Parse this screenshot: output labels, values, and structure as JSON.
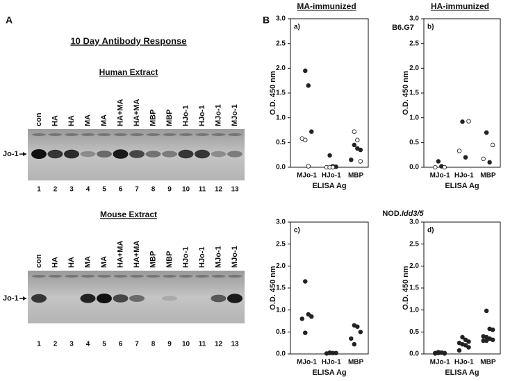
{
  "panel_a": {
    "letter": "A",
    "title": "10 Day Antibody Response",
    "blots": [
      {
        "title": "Human Extract",
        "lanes": [
          "con",
          "HA",
          "HA",
          "MA",
          "MA",
          "HA+MA",
          "HA+MA",
          "MBP",
          "MBP",
          "HJo-1",
          "HJo-1",
          "MJo-1",
          "MJo-1"
        ],
        "numbers": [
          1,
          2,
          3,
          4,
          5,
          6,
          7,
          8,
          9,
          10,
          11,
          12,
          13
        ],
        "marker": "Jo-1"
      },
      {
        "title": "Mouse Extract",
        "lanes": [
          "con",
          "HA",
          "HA",
          "MA",
          "MA",
          "HA+MA",
          "HA+MA",
          "MBP",
          "MBP",
          "HJo-1",
          "HJo-1",
          "MJo-1",
          "MJo-1"
        ],
        "numbers": [
          1,
          2,
          3,
          4,
          5,
          6,
          7,
          8,
          9,
          10,
          11,
          12,
          13
        ],
        "marker": "Jo-1"
      }
    ]
  },
  "panel_b": {
    "letter": "B",
    "columns": [
      "MA-immunized",
      "HA-immunized"
    ],
    "rows": [
      {
        "prefix": "B6.G7",
        "italic": ""
      },
      {
        "prefix": "NOD.",
        "italic": "Idd3/5"
      }
    ]
  },
  "chart_data": [
    {
      "type": "scatter",
      "title": "a)",
      "ylabel": "O.D. 450 nm",
      "xlabel": "ELISA Ag",
      "categories": [
        "MJo-1",
        "HJo-1",
        "MBP"
      ],
      "ylim": [
        0,
        3
      ],
      "yticks": [
        {
          "value": 0,
          "label": "0.0"
        },
        {
          "value": 0.5,
          "label": "0.5"
        },
        {
          "value": 1,
          "label": "1.0"
        },
        {
          "value": 1.5,
          "label": "1.5"
        },
        {
          "value": 2,
          "label": "2.0"
        },
        {
          "value": 2.5,
          "label": "2.5"
        },
        {
          "value": 3,
          "label": "3.0"
        }
      ],
      "series": [
        {
          "marker": "filled",
          "color": "#222",
          "x": [
            "MJo-1",
            "MJo-1",
            "MJo-1",
            "HJo-1",
            "HJo-1",
            "HJo-1",
            "MBP",
            "MBP",
            "MBP",
            "MBP"
          ],
          "values": [
            1.95,
            1.65,
            0.72,
            0.24,
            0.02,
            0.01,
            0.45,
            0.38,
            0.35,
            0.15
          ]
        },
        {
          "marker": "open",
          "color": "#222",
          "x": [
            "MJo-1",
            "MJo-1",
            "MJo-1",
            "HJo-1",
            "HJo-1",
            "HJo-1",
            "MBP",
            "MBP",
            "MBP"
          ],
          "values": [
            0.58,
            0.55,
            0.02,
            0,
            0,
            0,
            0.72,
            0.55,
            0.12
          ]
        }
      ]
    },
    {
      "type": "scatter",
      "title": "b)",
      "ylabel": "O.D. 450 nm",
      "xlabel": "ELISA Ag",
      "categories": [
        "MJo-1",
        "HJo-1",
        "MBP"
      ],
      "ylim": [
        0,
        3
      ],
      "yticks": [
        {
          "value": 0,
          "label": "0.0"
        },
        {
          "value": 0.5,
          "label": "0.5"
        },
        {
          "value": 1,
          "label": "1.0"
        },
        {
          "value": 1.5,
          "label": "1.5"
        },
        {
          "value": 2,
          "label": "2.0"
        },
        {
          "value": 2.5,
          "label": "2.5"
        },
        {
          "value": 3,
          "label": "3.0"
        }
      ],
      "series": [
        {
          "marker": "filled",
          "color": "#222",
          "x": [
            "MJo-1",
            "MJo-1",
            "HJo-1",
            "HJo-1",
            "MBP",
            "MBP"
          ],
          "values": [
            0.12,
            0.02,
            0.92,
            0.2,
            0.7,
            0.1
          ]
        },
        {
          "marker": "open",
          "color": "#222",
          "x": [
            "MJo-1",
            "MJo-1",
            "HJo-1",
            "HJo-1",
            "MBP",
            "MBP"
          ],
          "values": [
            0,
            0,
            0.93,
            0.33,
            0.45,
            0.17
          ]
        }
      ]
    },
    {
      "type": "scatter",
      "title": "c)",
      "ylabel": "O.D. 450 nm",
      "xlabel": "ELISA Ag",
      "categories": [
        "MJo-1",
        "HJo-1",
        "MBP"
      ],
      "ylim": [
        0,
        3
      ],
      "yticks": [
        {
          "value": 0,
          "label": "0.0"
        },
        {
          "value": 0.5,
          "label": "0.5"
        },
        {
          "value": 1,
          "label": "1.0"
        },
        {
          "value": 1.5,
          "label": "1.5"
        },
        {
          "value": 2,
          "label": "2.0"
        },
        {
          "value": 2.5,
          "label": "2.5"
        },
        {
          "value": 3,
          "label": "3.0"
        }
      ],
      "series": [
        {
          "marker": "filled",
          "color": "#222",
          "x": [
            "MJo-1",
            "MJo-1",
            "MJo-1",
            "MJo-1",
            "MJo-1",
            "HJo-1",
            "HJo-1",
            "HJo-1",
            "HJo-1",
            "HJo-1",
            "MBP",
            "MBP",
            "MBP",
            "MBP",
            "MBP"
          ],
          "values": [
            1.65,
            0.9,
            0.85,
            0.8,
            0.48,
            0.03,
            0.02,
            0.02,
            0.01,
            0.02,
            0.65,
            0.62,
            0.5,
            0.35,
            0.22
          ]
        }
      ]
    },
    {
      "type": "scatter",
      "title": "d)",
      "ylabel": "O.D. 450 nm",
      "xlabel": "ELISA Ag",
      "categories": [
        "MJo-1",
        "HJo-1",
        "MBP"
      ],
      "ylim": [
        0,
        3
      ],
      "yticks": [
        {
          "value": 0,
          "label": "0.0"
        },
        {
          "value": 0.5,
          "label": "0.5"
        },
        {
          "value": 1,
          "label": "1.0"
        },
        {
          "value": 1.5,
          "label": "1.5"
        },
        {
          "value": 2,
          "label": "2.0"
        },
        {
          "value": 2.5,
          "label": "2.5"
        },
        {
          "value": 3,
          "label": "3.0"
        }
      ],
      "series": [
        {
          "marker": "filled",
          "color": "#222",
          "x": [
            "MJo-1",
            "MJo-1",
            "MJo-1",
            "MJo-1",
            "MJo-1",
            "MJo-1",
            "MJo-1",
            "MJo-1",
            "HJo-1",
            "HJo-1",
            "HJo-1",
            "HJo-1",
            "HJo-1",
            "HJo-1",
            "HJo-1",
            "HJo-1",
            "MBP",
            "MBP",
            "MBP",
            "MBP",
            "MBP",
            "MBP",
            "MBP",
            "MBP",
            "MBP"
          ],
          "values": [
            0.04,
            0.03,
            0.02,
            0.01,
            0.02,
            0.03,
            0.01,
            0.02,
            0.38,
            0.32,
            0.28,
            0.25,
            0.22,
            0.2,
            0.15,
            0.08,
            0.98,
            0.57,
            0.55,
            0.4,
            0.38,
            0.35,
            0.32,
            0.3,
            0.3
          ]
        }
      ]
    }
  ]
}
